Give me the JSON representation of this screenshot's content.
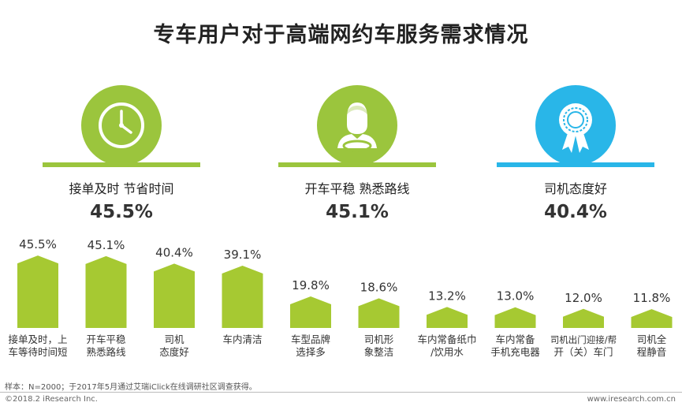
{
  "title": "专车用户对于高端网约车服务需求情况",
  "highlights": [
    {
      "label": "接单及时 节省时间",
      "value": "45.5%",
      "icon": "clock-icon",
      "color": "#9BC53D"
    },
    {
      "label": "开车平稳 熟悉路线",
      "value": "45.1%",
      "icon": "driver-icon",
      "color": "#9BC53D"
    },
    {
      "label": "司机态度好",
      "value": "40.4%",
      "icon": "award-ribbon-icon",
      "color": "#29B6E8"
    }
  ],
  "chart_data": {
    "type": "bar",
    "categories": [
      [
        "接单及时，上",
        "车等待时间短"
      ],
      [
        "开车平稳",
        "熟悉路线"
      ],
      [
        "司机",
        "态度好"
      ],
      [
        "车内清洁"
      ],
      [
        "车型品牌",
        "选择多"
      ],
      [
        "司机形",
        "象整洁"
      ],
      [
        "车内常备纸巾",
        "/饮用水"
      ],
      [
        "车内常备",
        "手机充电器"
      ],
      [
        "司机出门迎接/帮",
        "开（关）车门"
      ],
      [
        "司机全",
        "程静音"
      ]
    ],
    "values": [
      45.5,
      45.1,
      40.4,
      39.1,
      19.8,
      18.6,
      13.2,
      13.0,
      12.0,
      11.8
    ],
    "value_labels": [
      "45.5%",
      "45.1%",
      "40.4%",
      "39.1%",
      "19.8%",
      "18.6%",
      "13.2%",
      "13.0%",
      "12.0%",
      "11.8%"
    ],
    "bar_color": "#A6C932"
  },
  "footnote": "样本：N=2000；于2017年5月通过艾瑞iClick在线调研社区调查获得。",
  "copyright": "©2018.2 iResearch Inc.",
  "website": "www.iresearch.com.cn"
}
